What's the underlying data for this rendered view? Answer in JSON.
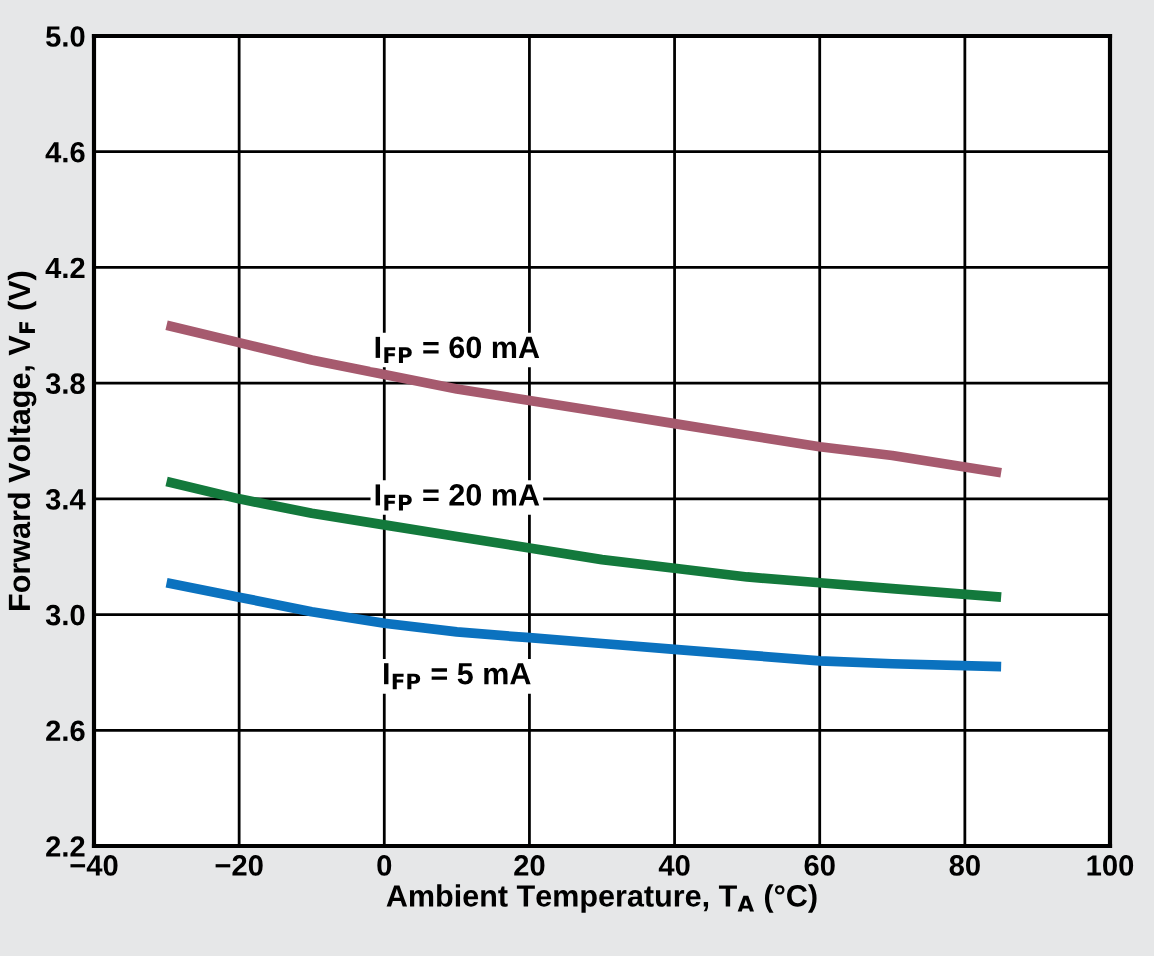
{
  "chart_data": {
    "type": "line",
    "xlabel": "Ambient Temperature, T$_{A}$ (°C)",
    "ylabel": "Forward Voltage, V$_{F}$ (V)",
    "series": [
      {
        "name": "I$_{FP}$ = 60 mA",
        "color": "#a65a6e",
        "x": [
          -30,
          -20,
          -10,
          0,
          10,
          20,
          30,
          40,
          50,
          60,
          70,
          85
        ],
        "values": [
          4.0,
          3.94,
          3.88,
          3.83,
          3.78,
          3.74,
          3.7,
          3.66,
          3.62,
          3.58,
          3.55,
          3.49
        ]
      },
      {
        "name": "I$_{FP}$ = 20 mA",
        "color": "#13793c",
        "x": [
          -30,
          -20,
          -10,
          0,
          10,
          20,
          30,
          40,
          50,
          60,
          70,
          85
        ],
        "values": [
          3.46,
          3.4,
          3.35,
          3.31,
          3.27,
          3.23,
          3.19,
          3.16,
          3.13,
          3.11,
          3.09,
          3.06
        ]
      },
      {
        "name": "I$_{FP}$ = 5 mA",
        "color": "#0b72bf",
        "x": [
          -30,
          -20,
          -10,
          0,
          10,
          20,
          30,
          40,
          50,
          60,
          70,
          85
        ],
        "values": [
          3.11,
          3.06,
          3.01,
          2.97,
          2.94,
          2.92,
          2.9,
          2.88,
          2.86,
          2.84,
          2.83,
          2.82
        ]
      }
    ],
    "xlim": [
      -40,
      100
    ],
    "xticks": [
      {
        "value": -40,
        "label": "−40"
      },
      {
        "value": -20,
        "label": "−20"
      },
      0,
      20,
      40,
      60,
      80,
      100
    ],
    "ylim": [
      2.2,
      5.0
    ],
    "yticks": [
      2.2,
      2.6,
      {
        "value": 3,
        "label": "3.0"
      },
      3.4,
      3.8,
      4.2,
      4.6,
      {
        "value": 5,
        "label": "5.0"
      }
    ],
    "grid": true,
    "legend": false,
    "line_style": "solid",
    "marker": "none"
  }
}
